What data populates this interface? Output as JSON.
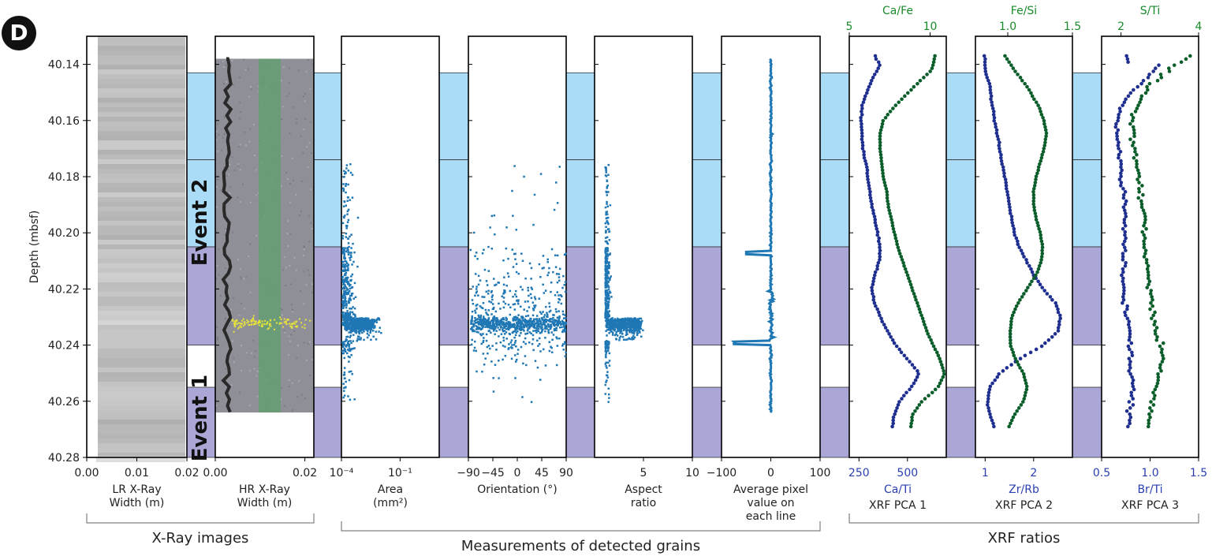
{
  "panel_letter": "D",
  "y_axis": {
    "label": "Depth (mbsf)",
    "ticks": [
      "40.14",
      "40.16",
      "40.18",
      "40.20",
      "40.22",
      "40.24",
      "40.26",
      "40.28"
    ],
    "range": [
      40.13,
      40.28
    ],
    "inverted": true
  },
  "intervals": [
    {
      "from": 40.143,
      "to": 40.174,
      "color": "#aadcf7",
      "kind": "light-blue"
    },
    {
      "from": 40.174,
      "to": 40.205,
      "color": "#aadcf7",
      "kind": "light-blue"
    },
    {
      "from": 40.205,
      "to": 40.24,
      "color": "#aaa6d6",
      "kind": "purple"
    },
    {
      "from": 40.255,
      "to": 40.28,
      "color": "#aaa6d6",
      "kind": "purple"
    }
  ],
  "event_labels": [
    "Event 2",
    "Event 1"
  ],
  "group_labels": [
    "X-Ray images",
    "Measurements of detected grains",
    "XRF ratios"
  ],
  "colors": {
    "series_blue": "#1f77b4",
    "dark_blue": "#1f2f8f",
    "dark_green": "#0b5e2a",
    "top_green": "#1a8a2a",
    "bottom_blue": "#2a3fb0"
  },
  "chart_data": [
    {
      "type": "image",
      "xlabel": "LR X-Ray\nWidth (m)",
      "xticks": [
        "0.00",
        "0.01",
        "0.02"
      ],
      "xlim": [
        0,
        0.02
      ]
    },
    {
      "type": "image",
      "xlabel": "HR X-Ray\nWidth (m)",
      "xticks": [
        "0.00",
        "0.02"
      ],
      "xlim": [
        0,
        0.022
      ],
      "image_depth_range": [
        40.138,
        40.264
      ]
    },
    {
      "type": "scatter",
      "xlabel": "Area\n(mm²)",
      "xticks": [
        "10⁻⁴",
        "10⁻¹"
      ],
      "xscale": "log",
      "xlim": [
        0.0001,
        10
      ]
    },
    {
      "type": "scatter",
      "xlabel": "Orientation (°)",
      "xticks": [
        "−90",
        "−45",
        "0",
        "45",
        "90"
      ],
      "xlim": [
        -90,
        90
      ]
    },
    {
      "type": "scatter",
      "xlabel": "Aspect\nratio",
      "xticks": [
        "5",
        "10"
      ],
      "xlim": [
        0,
        10
      ]
    },
    {
      "type": "line",
      "xlabel": "Average pixel\nvalue on\neach line",
      "xticks": [
        "−100",
        "0",
        "100"
      ],
      "xlim": [
        -100,
        100
      ],
      "y_extent": [
        40.138,
        40.264
      ]
    },
    {
      "type": "scatter",
      "xlabel": "Ca/Ti",
      "top_label": "Ca/Fe",
      "pca_label": "XRF PCA 1",
      "xticks": [
        "250",
        "500"
      ],
      "xlim": [
        200,
        700
      ],
      "top_ticks": [
        "5",
        "10"
      ],
      "top_xlim": [
        5,
        11
      ],
      "series": [
        {
          "name": "Ca/Ti",
          "color": "#1f2f8f",
          "points": [
            [
              40.137,
              330
            ],
            [
              40.14,
              360
            ],
            [
              40.145,
              320
            ],
            [
              40.15,
              290
            ],
            [
              40.155,
              265
            ],
            [
              40.16,
              260
            ],
            [
              40.165,
              265
            ],
            [
              40.17,
              270
            ],
            [
              40.175,
              285
            ],
            [
              40.18,
              295
            ],
            [
              40.185,
              305
            ],
            [
              40.19,
              315
            ],
            [
              40.195,
              330
            ],
            [
              40.2,
              345
            ],
            [
              40.205,
              360
            ],
            [
              40.21,
              355
            ],
            [
              40.215,
              330
            ],
            [
              40.22,
              315
            ],
            [
              40.225,
              330
            ],
            [
              40.23,
              360
            ],
            [
              40.235,
              395
            ],
            [
              40.24,
              440
            ],
            [
              40.245,
              500
            ],
            [
              40.25,
              560
            ],
            [
              40.255,
              520
            ],
            [
              40.26,
              460
            ],
            [
              40.265,
              430
            ],
            [
              40.27,
              420
            ]
          ]
        },
        {
          "name": "Ca/Fe",
          "color": "#0b5e2a",
          "points": [
            [
              40.137,
              10.3
            ],
            [
              40.142,
              10.1
            ],
            [
              40.148,
              9.0
            ],
            [
              40.155,
              7.8
            ],
            [
              40.16,
              7.1
            ],
            [
              40.165,
              6.9
            ],
            [
              40.17,
              6.9
            ],
            [
              40.175,
              7.0
            ],
            [
              40.18,
              7.1
            ],
            [
              40.185,
              7.3
            ],
            [
              40.19,
              7.4
            ],
            [
              40.195,
              7.6
            ],
            [
              40.2,
              7.8
            ],
            [
              40.205,
              8.0
            ],
            [
              40.21,
              8.3
            ],
            [
              40.215,
              8.6
            ],
            [
              40.22,
              8.9
            ],
            [
              40.225,
              9.2
            ],
            [
              40.23,
              9.5
            ],
            [
              40.235,
              9.8
            ],
            [
              40.24,
              10.2
            ],
            [
              40.245,
              10.6
            ],
            [
              40.25,
              10.9
            ],
            [
              40.255,
              10.5
            ],
            [
              40.26,
              9.5
            ],
            [
              40.265,
              8.9
            ],
            [
              40.27,
              8.8
            ]
          ]
        }
      ]
    },
    {
      "type": "scatter",
      "xlabel": "Zr/Rb",
      "top_label": "Fe/Si",
      "pca_label": "XRF PCA 2",
      "xticks": [
        "1",
        "2"
      ],
      "xlim": [
        0.8,
        2.8
      ],
      "top_ticks": [
        "1.0",
        "1.5"
      ],
      "top_xlim": [
        0.75,
        1.5
      ],
      "series": [
        {
          "name": "Zr/Rb",
          "color": "#1f2f8f",
          "points": [
            [
              40.137,
              1.0
            ],
            [
              40.142,
              1.0
            ],
            [
              40.148,
              1.1
            ],
            [
              40.155,
              1.15
            ],
            [
              40.16,
              1.2
            ],
            [
              40.165,
              1.25
            ],
            [
              40.17,
              1.3
            ],
            [
              40.175,
              1.35
            ],
            [
              40.18,
              1.4
            ],
            [
              40.185,
              1.45
            ],
            [
              40.19,
              1.5
            ],
            [
              40.195,
              1.55
            ],
            [
              40.2,
              1.6
            ],
            [
              40.205,
              1.7
            ],
            [
              40.21,
              1.85
            ],
            [
              40.215,
              2.0
            ],
            [
              40.22,
              2.2
            ],
            [
              40.225,
              2.45
            ],
            [
              40.23,
              2.55
            ],
            [
              40.235,
              2.5
            ],
            [
              40.24,
              2.2
            ],
            [
              40.245,
              1.7
            ],
            [
              40.25,
              1.3
            ],
            [
              40.255,
              1.1
            ],
            [
              40.26,
              1.05
            ],
            [
              40.265,
              1.1
            ],
            [
              40.27,
              1.2
            ]
          ]
        },
        {
          "name": "Fe/Si",
          "color": "#0b5e2a",
          "points": [
            [
              40.137,
              0.98
            ],
            [
              40.142,
              1.05
            ],
            [
              40.148,
              1.15
            ],
            [
              40.155,
              1.24
            ],
            [
              40.16,
              1.28
            ],
            [
              40.165,
              1.3
            ],
            [
              40.17,
              1.28
            ],
            [
              40.175,
              1.25
            ],
            [
              40.18,
              1.22
            ],
            [
              40.185,
              1.2
            ],
            [
              40.19,
              1.2
            ],
            [
              40.195,
              1.22
            ],
            [
              40.2,
              1.25
            ],
            [
              40.205,
              1.27
            ],
            [
              40.21,
              1.26
            ],
            [
              40.215,
              1.22
            ],
            [
              40.22,
              1.15
            ],
            [
              40.225,
              1.08
            ],
            [
              40.23,
              1.03
            ],
            [
              40.235,
              1.02
            ],
            [
              40.24,
              1.02
            ],
            [
              40.245,
              1.06
            ],
            [
              40.25,
              1.12
            ],
            [
              40.255,
              1.15
            ],
            [
              40.26,
              1.12
            ],
            [
              40.265,
              1.05
            ],
            [
              40.27,
              1.0
            ]
          ]
        }
      ]
    },
    {
      "type": "scatter",
      "xlabel": "Br/Ti",
      "top_label": "S/Ti",
      "pca_label": "XRF PCA 3",
      "xticks": [
        "0.5",
        "1.0",
        "1.5"
      ],
      "xlim": [
        0.5,
        1.5
      ],
      "top_ticks": [
        "2",
        "4"
      ],
      "top_xlim": [
        1.5,
        4
      ],
      "series": [
        {
          "name": "Br/Ti",
          "color": "#1f2f8f",
          "points": [
            [
              40.14,
              1.1
            ],
            [
              40.145,
              0.95
            ],
            [
              40.15,
              0.8
            ],
            [
              40.155,
              0.7
            ],
            [
              40.16,
              0.66
            ],
            [
              40.165,
              0.66
            ],
            [
              40.17,
              0.68
            ],
            [
              40.175,
              0.7
            ],
            [
              40.18,
              0.7
            ],
            [
              40.185,
              0.72
            ],
            [
              40.19,
              0.74
            ],
            [
              40.195,
              0.74
            ],
            [
              40.2,
              0.75
            ],
            [
              40.205,
              0.74
            ],
            [
              40.21,
              0.72
            ],
            [
              40.215,
              0.72
            ],
            [
              40.22,
              0.73
            ],
            [
              40.225,
              0.74
            ],
            [
              40.23,
              0.76
            ],
            [
              40.235,
              0.78
            ],
            [
              40.24,
              0.8
            ],
            [
              40.245,
              0.8
            ],
            [
              40.25,
              0.8
            ],
            [
              40.255,
              0.82
            ],
            [
              40.26,
              0.8
            ],
            [
              40.265,
              0.78
            ],
            [
              40.27,
              0.76
            ]
          ]
        },
        {
          "name": "S/Ti",
          "color": "#0b5e2a",
          "points": [
            [
              40.137,
              3.8
            ],
            [
              40.142,
              3.2
            ],
            [
              40.148,
              2.7
            ],
            [
              40.155,
              2.4
            ],
            [
              40.16,
              2.3
            ],
            [
              40.165,
              2.3
            ],
            [
              40.17,
              2.35
            ],
            [
              40.175,
              2.4
            ],
            [
              40.18,
              2.45
            ],
            [
              40.185,
              2.5
            ],
            [
              40.19,
              2.55
            ],
            [
              40.195,
              2.6
            ],
            [
              40.2,
              2.6
            ],
            [
              40.205,
              2.6
            ],
            [
              40.21,
              2.65
            ],
            [
              40.215,
              2.7
            ],
            [
              40.22,
              2.75
            ],
            [
              40.225,
              2.8
            ],
            [
              40.23,
              2.85
            ],
            [
              40.235,
              2.9
            ],
            [
              40.24,
              3.0
            ],
            [
              40.245,
              3.1
            ],
            [
              40.25,
              3.0
            ],
            [
              40.255,
              2.9
            ],
            [
              40.26,
              2.8
            ],
            [
              40.265,
              2.75
            ],
            [
              40.27,
              2.7
            ]
          ]
        }
      ]
    }
  ]
}
